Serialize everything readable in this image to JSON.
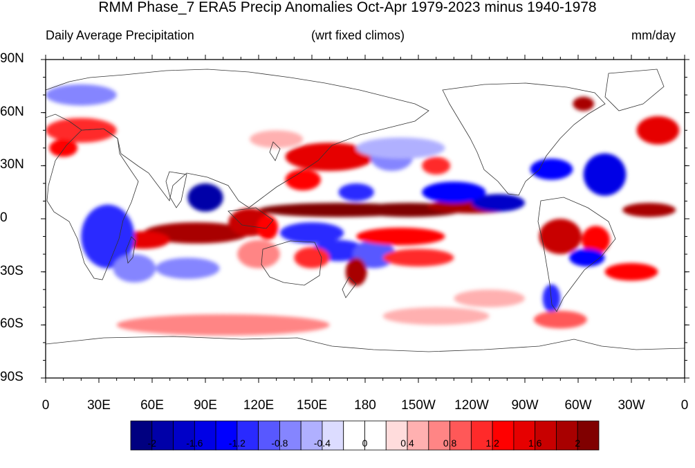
{
  "title": "RMM Phase_7 ERA5 Precip Anomalies Oct-Apr 1979-2023 minus 1940-1978",
  "subtitle_left": "Daily Average Precipitation",
  "subtitle_center": "(wrt fixed climos)",
  "units": "mm/day",
  "chart_data": {
    "type": "heatmap",
    "projection": "cylindrical-equidistant",
    "lon_range": [
      0,
      360
    ],
    "lat_range": [
      -90,
      90
    ],
    "y_ticks": [
      "90N",
      "60N",
      "30N",
      "0",
      "30S",
      "60S",
      "90S"
    ],
    "x_ticks": [
      "0",
      "30E",
      "60E",
      "90E",
      "120E",
      "150E",
      "180",
      "150W",
      "120W",
      "90W",
      "60W",
      "30W",
      "0"
    ],
    "colorbar": {
      "levels": [
        -2.2,
        -2,
        -1.8,
        -1.6,
        -1.4,
        -1.2,
        -1,
        -0.8,
        -0.6,
        -0.4,
        -0.2,
        0,
        0.2,
        0.4,
        0.6,
        0.8,
        1,
        1.2,
        1.4,
        1.6,
        1.8,
        2,
        2.2
      ],
      "labels": [
        "-2",
        "-1.6",
        "-1.2",
        "-0.8",
        "-0.4",
        "0",
        "0.4",
        "0.8",
        "1.2",
        "1.6",
        "2"
      ],
      "colors": [
        "#000080",
        "#0000a8",
        "#0000c8",
        "#0000e6",
        "#0000ff",
        "#2a2aff",
        "#5858ff",
        "#8585ff",
        "#b0b0ff",
        "#dcdcff",
        "#ffffff",
        "#ffffff",
        "#ffdcdc",
        "#ffb0b0",
        "#ff8585",
        "#ff5858",
        "#ff2a2a",
        "#ff0000",
        "#e60000",
        "#c80000",
        "#a80000",
        "#800000"
      ]
    },
    "anomaly_regions": [
      {
        "lon": 165,
        "lat": 5,
        "rx": 45,
        "ry": 4,
        "v": 2
      },
      {
        "lon": 205,
        "lat": 5,
        "rx": 30,
        "ry": 4,
        "v": 2
      },
      {
        "lon": 240,
        "lat": 7,
        "rx": 25,
        "ry": 4,
        "v": 1.8
      },
      {
        "lon": 255,
        "lat": 9,
        "rx": 15,
        "ry": 5,
        "v": -1.8
      },
      {
        "lon": 230,
        "lat": 15,
        "rx": 18,
        "ry": 6,
        "v": -1.4
      },
      {
        "lon": 340,
        "lat": 5,
        "rx": 15,
        "ry": 4,
        "v": 1.8
      },
      {
        "lon": 85,
        "lat": -8,
        "rx": 30,
        "ry": 6,
        "v": 1.8
      },
      {
        "lon": 55,
        "lat": -12,
        "rx": 15,
        "ry": 5,
        "v": 1.4
      },
      {
        "lon": 115,
        "lat": -2,
        "rx": 12,
        "ry": 8,
        "v": 1.6
      },
      {
        "lon": 125,
        "lat": -5,
        "rx": 6,
        "ry": 7,
        "v": 1.2
      },
      {
        "lon": 90,
        "lat": 12,
        "rx": 10,
        "ry": 8,
        "v": -2
      },
      {
        "lon": 35,
        "lat": -10,
        "rx": 15,
        "ry": 18,
        "v": -1.2
      },
      {
        "lon": 50,
        "lat": -28,
        "rx": 12,
        "ry": 8,
        "v": -0.8
      },
      {
        "lon": 80,
        "lat": -28,
        "rx": 18,
        "ry": 6,
        "v": -0.8
      },
      {
        "lon": 150,
        "lat": -8,
        "rx": 18,
        "ry": 6,
        "v": -1.2
      },
      {
        "lon": 165,
        "lat": -18,
        "rx": 15,
        "ry": 6,
        "v": -1.2
      },
      {
        "lon": 185,
        "lat": -20,
        "rx": 12,
        "ry": 8,
        "v": -1.0
      },
      {
        "lon": 210,
        "lat": -22,
        "rx": 20,
        "ry": 5,
        "v": 1.0
      },
      {
        "lon": 200,
        "lat": -10,
        "rx": 25,
        "ry": 5,
        "v": 1.2
      },
      {
        "lon": 175,
        "lat": -30,
        "rx": 6,
        "ry": 8,
        "v": 1.8
      },
      {
        "lon": 150,
        "lat": -22,
        "rx": 10,
        "ry": 6,
        "v": 1.0
      },
      {
        "lon": 120,
        "lat": -20,
        "rx": 12,
        "ry": 8,
        "v": 0.6
      },
      {
        "lon": 160,
        "lat": 35,
        "rx": 25,
        "ry": 8,
        "v": 1.4
      },
      {
        "lon": 145,
        "lat": 22,
        "rx": 10,
        "ry": 6,
        "v": 1.2
      },
      {
        "lon": 175,
        "lat": 15,
        "rx": 10,
        "ry": 5,
        "v": -1.2
      },
      {
        "lon": 195,
        "lat": 35,
        "rx": 12,
        "ry": 8,
        "v": -0.8
      },
      {
        "lon": 220,
        "lat": 30,
        "rx": 8,
        "ry": 5,
        "v": 1.0
      },
      {
        "lon": 290,
        "lat": -10,
        "rx": 12,
        "ry": 10,
        "v": 1.6
      },
      {
        "lon": 310,
        "lat": -12,
        "rx": 8,
        "ry": 8,
        "v": 1.2
      },
      {
        "lon": 305,
        "lat": -22,
        "rx": 10,
        "ry": 5,
        "v": -1.4
      },
      {
        "lon": 330,
        "lat": -30,
        "rx": 15,
        "ry": 5,
        "v": 1.2
      },
      {
        "lon": 285,
        "lat": -45,
        "rx": 5,
        "ry": 8,
        "v": -1.2
      },
      {
        "lon": 315,
        "lat": 25,
        "rx": 12,
        "ry": 12,
        "v": -1.6
      },
      {
        "lon": 285,
        "lat": 28,
        "rx": 12,
        "ry": 6,
        "v": -1.4
      },
      {
        "lon": 345,
        "lat": 50,
        "rx": 12,
        "ry": 8,
        "v": 1.4
      },
      {
        "lon": 303,
        "lat": 65,
        "rx": 6,
        "ry": 4,
        "v": 1.8
      },
      {
        "lon": 20,
        "lat": 50,
        "rx": 20,
        "ry": 7,
        "v": 1.0
      },
      {
        "lon": 10,
        "lat": 40,
        "rx": 8,
        "ry": 5,
        "v": 1.2
      },
      {
        "lon": 20,
        "lat": 70,
        "rx": 20,
        "ry": 6,
        "v": -0.8
      },
      {
        "lon": 200,
        "lat": 40,
        "rx": 25,
        "ry": 6,
        "v": -0.6
      },
      {
        "lon": 100,
        "lat": -60,
        "rx": 60,
        "ry": 6,
        "v": 0.6
      },
      {
        "lon": 290,
        "lat": -57,
        "rx": 15,
        "ry": 5,
        "v": 0.8
      },
      {
        "lon": 220,
        "lat": -55,
        "rx": 30,
        "ry": 5,
        "v": 0.4
      },
      {
        "lon": 130,
        "lat": 45,
        "rx": 15,
        "ry": 5,
        "v": 0.4
      },
      {
        "lon": 250,
        "lat": -45,
        "rx": 20,
        "ry": 5,
        "v": 0.4
      }
    ]
  }
}
